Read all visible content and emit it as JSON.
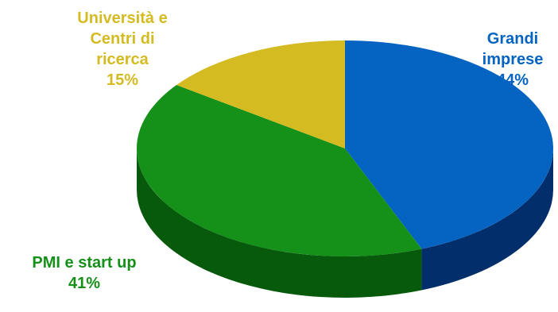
{
  "chart_data": {
    "type": "pie",
    "style": "3d",
    "slices": [
      {
        "label_lines": [
          "Grandi",
          "imprese"
        ],
        "value": 44,
        "value_text": "44%",
        "color": "#0563C1",
        "side_color": "#022F6B",
        "label_color": "#0563C1"
      },
      {
        "label_lines": [
          "PMI e start up"
        ],
        "value": 41,
        "value_text": "41%",
        "color": "#159019",
        "side_color": "#075A0B",
        "label_color": "#159019"
      },
      {
        "label_lines": [
          "Università e",
          "Centri di",
          "ricerca"
        ],
        "value": 15,
        "value_text": "15%",
        "color": "#D4BB22",
        "side_color": "#8C7A12",
        "label_color": "#D4BB22"
      }
    ]
  }
}
